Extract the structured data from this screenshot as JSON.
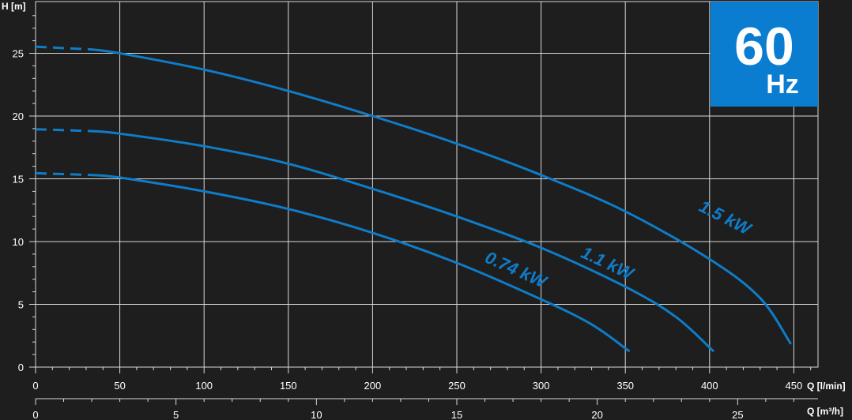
{
  "chart_data": {
    "type": "line",
    "title": "",
    "ylabel": "H [m]",
    "xlabel": "Q [l/min]",
    "x2label": "Q [m³/h]",
    "xlim": [
      0,
      465
    ],
    "ylim": [
      0,
      28
    ],
    "x_ticks": [
      0,
      50,
      100,
      150,
      200,
      250,
      300,
      350,
      400,
      450
    ],
    "y_ticks": [
      0,
      5,
      10,
      15,
      20,
      25
    ],
    "x2_ticks": [
      0,
      5,
      10,
      15,
      20,
      25
    ],
    "grid": true,
    "badge": {
      "value": "60",
      "unit": "Hz",
      "color": "#0a7dd0",
      "position": "top-right"
    },
    "line_color": "#0f7cc8",
    "series": [
      {
        "name": "1.5 kW",
        "dashed_x": [
          0,
          34
        ],
        "x": [
          34,
          50,
          100,
          150,
          200,
          250,
          300,
          350,
          400,
          430,
          448
        ],
        "y": [
          25.3,
          25.0,
          23.7,
          22.0,
          20.0,
          17.8,
          15.3,
          12.4,
          8.6,
          5.5,
          1.9
        ]
      },
      {
        "name": "1.1 kW",
        "dashed_x": [
          0,
          34
        ],
        "x": [
          34,
          50,
          100,
          150,
          200,
          250,
          300,
          350,
          380,
          402
        ],
        "y": [
          18.8,
          18.6,
          17.6,
          16.2,
          14.2,
          12.0,
          9.5,
          6.4,
          4.0,
          1.3
        ]
      },
      {
        "name": "0.74 kW",
        "dashed_x": [
          0,
          34
        ],
        "x": [
          34,
          50,
          100,
          150,
          200,
          250,
          300,
          330,
          352
        ],
        "y": [
          15.3,
          15.1,
          14.0,
          12.6,
          10.7,
          8.3,
          5.4,
          3.4,
          1.3
        ]
      }
    ],
    "curve_label_positions_data": [
      {
        "series": "1.5 kW",
        "x": 393,
        "y": 12.5,
        "angle_deg": 27
      },
      {
        "series": "1.1 kW",
        "x": 323,
        "y": 8.8,
        "angle_deg": 25
      },
      {
        "series": "0.74 kW",
        "x": 266,
        "y": 8.4,
        "angle_deg": 24
      }
    ]
  }
}
